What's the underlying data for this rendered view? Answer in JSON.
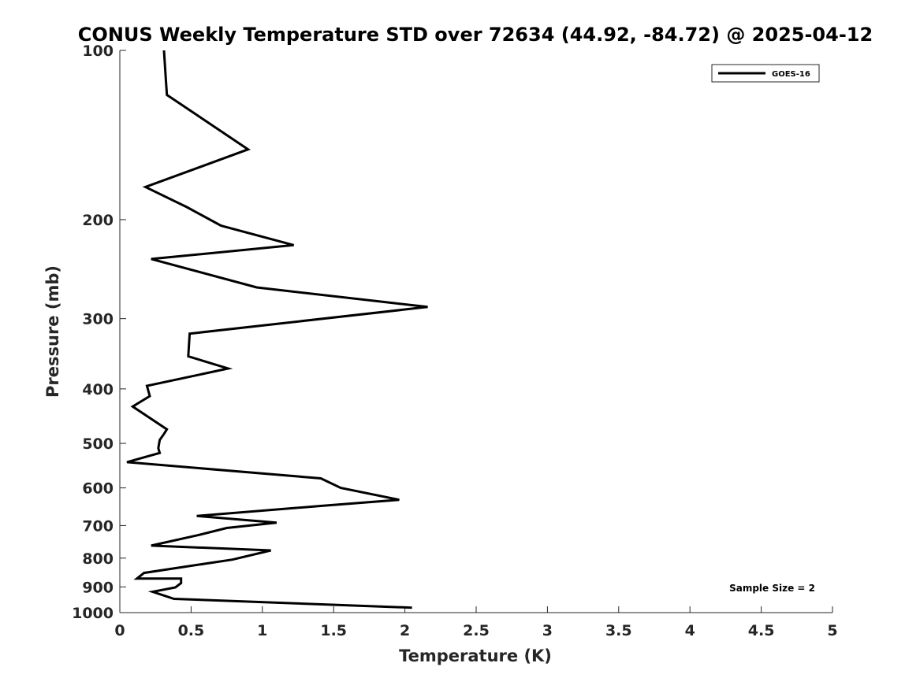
{
  "chart_data": {
    "type": "line",
    "title": "CONUS Weekly Temperature STD over 72634 (44.92, -84.72) @ 2025-04-12",
    "xlabel": "Temperature (K)",
    "ylabel": "Pressure (mb)",
    "xlim": [
      0,
      5
    ],
    "ylim": [
      100,
      1000
    ],
    "y_scale": "log",
    "y_reversed": true,
    "x_ticks": [
      0,
      0.5,
      1,
      1.5,
      2,
      2.5,
      3,
      3.5,
      4,
      4.5,
      5
    ],
    "x_tick_labels": [
      "0",
      "0.5",
      "1",
      "1.5",
      "2",
      "2.5",
      "3",
      "3.5",
      "4",
      "4.5",
      "5"
    ],
    "y_ticks": [
      100,
      200,
      300,
      400,
      500,
      600,
      700,
      800,
      900,
      1000
    ],
    "y_tick_labels": [
      "100",
      "200",
      "300",
      "400",
      "500",
      "600",
      "700",
      "800",
      "900",
      "1000"
    ],
    "grid": false,
    "legend_position": "top-right",
    "annotation": "Sample Size = 2",
    "series": [
      {
        "name": "GOES-16",
        "color": "#000000",
        "x": [
          0.31,
          0.32,
          0.33,
          0.9,
          0.18,
          0.47,
          0.71,
          1.22,
          0.22,
          0.96,
          2.16,
          0.49,
          0.48,
          0.76,
          0.19,
          0.21,
          0.09,
          0.33,
          0.31,
          0.28,
          0.27,
          0.28,
          0.05,
          1.41,
          1.55,
          1.96,
          1.41,
          0.54,
          1.1,
          0.75,
          0.55,
          0.22,
          1.06,
          0.79,
          0.41,
          0.17,
          0.12,
          0.43,
          0.43,
          0.39,
          0.23,
          0.38,
          2.05
        ],
        "y": [
          100,
          110,
          120,
          150,
          175,
          190,
          205,
          222,
          235,
          264,
          286,
          319,
          350,
          368,
          395,
          412,
          430,
          472,
          481,
          493,
          510,
          520,
          540,
          577,
          600,
          630,
          646,
          673,
          692,
          707,
          728,
          760,
          775,
          805,
          832,
          850,
          870,
          870,
          886,
          902,
          918,
          945,
          980
        ]
      }
    ]
  }
}
